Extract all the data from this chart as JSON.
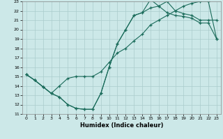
{
  "xlabel": "Humidex (Indice chaleur)",
  "xlim": [
    -0.5,
    23.5
  ],
  "ylim": [
    11,
    23
  ],
  "xticks": [
    0,
    1,
    2,
    3,
    4,
    5,
    6,
    7,
    8,
    9,
    10,
    11,
    12,
    13,
    14,
    15,
    16,
    17,
    18,
    19,
    20,
    21,
    22,
    23
  ],
  "yticks": [
    11,
    12,
    13,
    14,
    15,
    16,
    17,
    18,
    19,
    20,
    21,
    22,
    23
  ],
  "bg_color": "#cce8e8",
  "line_color": "#1a6b5a",
  "grid_color": "#aacccc",
  "line1_x": [
    0,
    1,
    2,
    3,
    4,
    5,
    6,
    7,
    8,
    9,
    10,
    11,
    12,
    13,
    14,
    15,
    16,
    17,
    18,
    19,
    20,
    21,
    22,
    23
  ],
  "line1_y": [
    15.2,
    14.6,
    13.9,
    13.2,
    12.8,
    12.0,
    11.6,
    11.5,
    11.5,
    13.2,
    16.0,
    18.5,
    20.0,
    21.5,
    21.8,
    23.2,
    22.5,
    23.0,
    22.0,
    21.7,
    21.5,
    21.0,
    21.0,
    21.0
  ],
  "line2_x": [
    0,
    1,
    2,
    3,
    4,
    5,
    6,
    7,
    8,
    9,
    10,
    11,
    12,
    13,
    14,
    15,
    16,
    17,
    18,
    19,
    20,
    21,
    22,
    23
  ],
  "line2_y": [
    15.2,
    14.6,
    13.9,
    13.2,
    12.8,
    12.0,
    11.6,
    11.5,
    11.5,
    13.2,
    16.0,
    18.5,
    20.0,
    21.5,
    21.8,
    22.3,
    22.5,
    21.8,
    21.5,
    21.4,
    21.2,
    20.7,
    20.7,
    19.0
  ],
  "line3_x": [
    0,
    1,
    2,
    3,
    4,
    5,
    6,
    7,
    8,
    9,
    10,
    11,
    12,
    13,
    14,
    15,
    16,
    17,
    18,
    19,
    20,
    21,
    22,
    23
  ],
  "line3_y": [
    15.2,
    14.6,
    13.9,
    13.2,
    14.0,
    14.8,
    15.0,
    15.0,
    15.0,
    15.5,
    16.5,
    17.5,
    18.0,
    18.8,
    19.5,
    20.5,
    21.0,
    21.5,
    22.0,
    22.5,
    22.8,
    23.0,
    23.0,
    19.0
  ]
}
